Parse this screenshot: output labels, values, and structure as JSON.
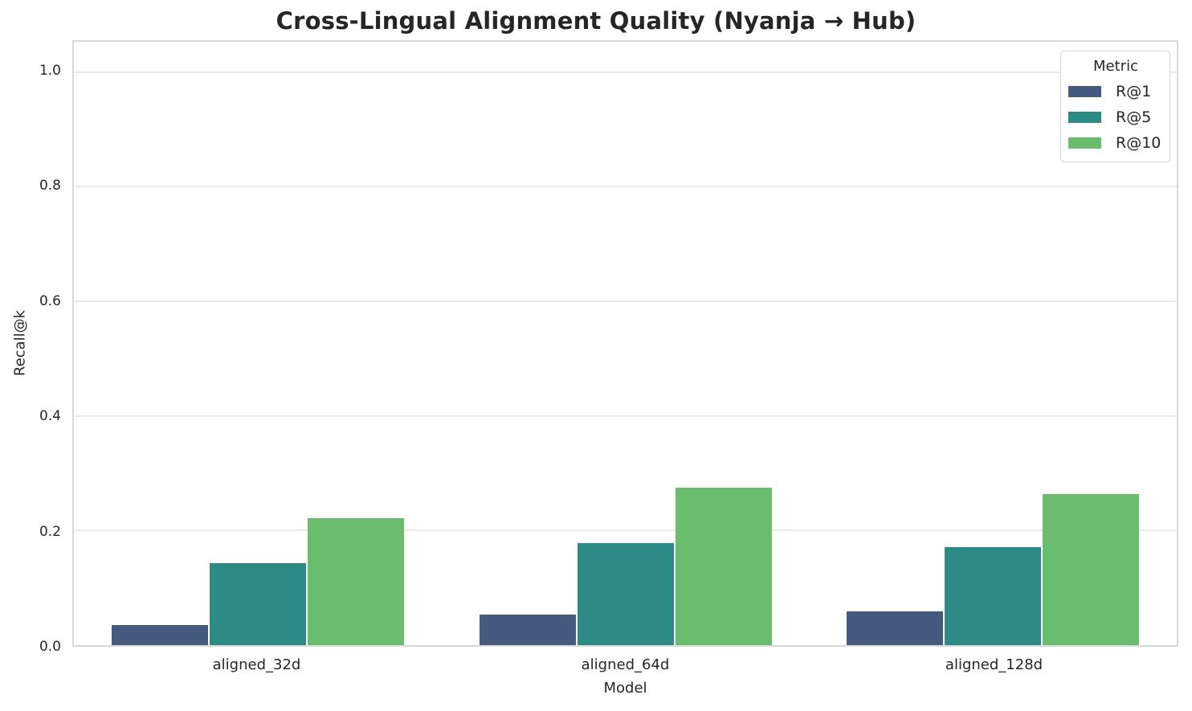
{
  "header": {
    "title": "Cross-Lingual Alignment Quality (Nyanja → Hub)"
  },
  "chart_data": {
    "type": "bar",
    "title": "Cross-Lingual Alignment Quality (Nyanja → Hub)",
    "xlabel": "Model",
    "ylabel": "Recall@k",
    "categories": [
      "aligned_32d",
      "aligned_64d",
      "aligned_128d"
    ],
    "series": [
      {
        "name": "R@1",
        "color": "#46597e",
        "values": [
          0.035,
          0.054,
          0.059
        ]
      },
      {
        "name": "R@5",
        "color": "#2e8a84",
        "values": [
          0.143,
          0.178,
          0.171
        ]
      },
      {
        "name": "R@10",
        "color": "#6abd6c",
        "values": [
          0.221,
          0.275,
          0.263
        ]
      }
    ],
    "ylim": [
      0,
      1.053
    ],
    "yticks": [
      0.0,
      0.2,
      0.4,
      0.6,
      0.8,
      1.0
    ],
    "ytick_labels": [
      "0.0",
      "0.2",
      "0.4",
      "0.6",
      "0.8",
      "1.0"
    ],
    "grid": "horizontal",
    "legend": {
      "title": "Metric",
      "position": "upper right"
    }
  },
  "colors": {
    "text": "#262626",
    "grid": "#ebebeb",
    "axes_border": "#d9d9d9",
    "background": "#ffffff"
  }
}
